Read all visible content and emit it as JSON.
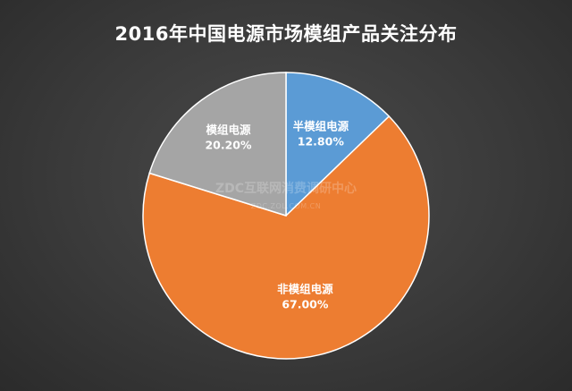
{
  "chart_data": {
    "type": "pie",
    "title": "2016年中国电源市场模组产品关注分布",
    "slices": [
      {
        "label": "半模组电源",
        "value": 12.8,
        "display": "12.80%",
        "color": "#5b9bd5"
      },
      {
        "label": "非模组电源",
        "value": 67.0,
        "display": "67.00%",
        "color": "#ed7d31"
      },
      {
        "label": "模组电源",
        "value": 20.2,
        "display": "20.20%",
        "color": "#a5a5a5"
      }
    ],
    "start_angle_deg": 0,
    "direction": "clockwise",
    "legend": "none",
    "watermark": {
      "main": "ZDC互联网消费调研中心",
      "sub": "ZDC.ZOL.COM.CN"
    }
  }
}
